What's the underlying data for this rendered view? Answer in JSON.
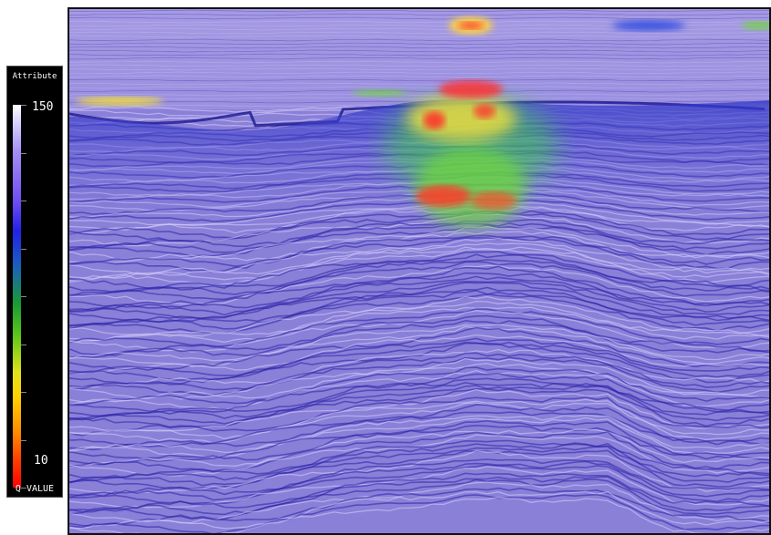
{
  "colorbar": {
    "title": "Attribute",
    "max_label": "150",
    "min_label": "10",
    "unit_label": "Q VALUE",
    "colors": [
      "#ffffff",
      "#8a70f2",
      "#2222e6",
      "#1a9a33",
      "#e2e21a",
      "#ff9000",
      "#ff0000"
    ]
  },
  "seismic_section": {
    "background_color": "#8a80d8",
    "reflector_dark": "#2a1fa8",
    "reflector_light": "#d7cffb",
    "anomaly_colors": [
      "#ff2b2b",
      "#ffcf3a",
      "#6fd83a",
      "#2c48e0"
    ]
  }
}
